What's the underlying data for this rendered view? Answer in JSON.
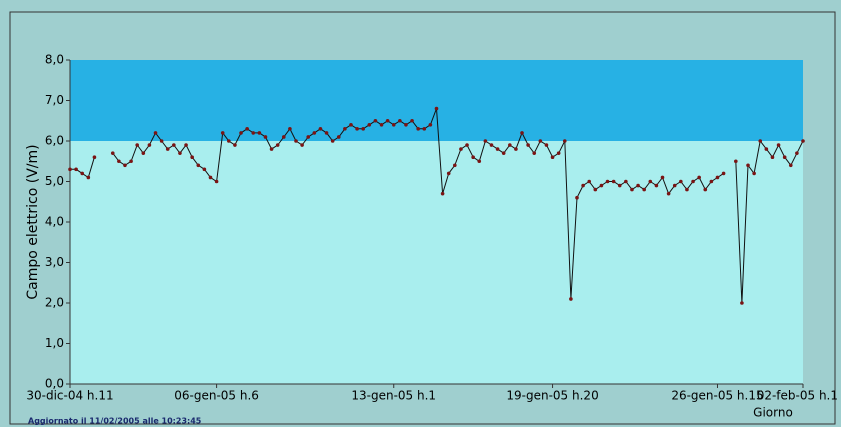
{
  "chart_data": {
    "type": "line",
    "ylabel": "Campo elettrico (V/m)",
    "xlabel": "Giorno",
    "footer": "Aggiornato il 11/02/2005 alle 10:23:45",
    "threshold": 6,
    "colors": {
      "above": "#27b1e4",
      "below": "#a9eeee",
      "line": "#111111",
      "marker": "#7a1414",
      "background": "#9fcfcf"
    },
    "xlim": [
      0,
      120
    ],
    "xticks": [
      {
        "value": 0,
        "label": "30-dic-04 h.11"
      },
      {
        "value": 24,
        "label": "06-gen-05 h.6"
      },
      {
        "value": 53,
        "label": "13-gen-05 h.1"
      },
      {
        "value": 79,
        "label": "19-gen-05 h.20"
      },
      {
        "value": 106,
        "label": "26-gen-05 h.15"
      },
      {
        "value": 120,
        "label": "02-feb-05 h.1"
      }
    ],
    "ylim": [
      0,
      8
    ],
    "yticks": [
      {
        "value": 0,
        "label": "0,0"
      },
      {
        "value": 1,
        "label": "1,0"
      },
      {
        "value": 2,
        "label": "2,0"
      },
      {
        "value": 3,
        "label": "3,0"
      },
      {
        "value": 4,
        "label": "4,0"
      },
      {
        "value": 5,
        "label": "5,0"
      },
      {
        "value": 6,
        "label": "6,0"
      },
      {
        "value": 7,
        "label": "7,0"
      },
      {
        "value": 8,
        "label": "8,0"
      }
    ],
    "values": [
      5.3,
      5.3,
      5.2,
      5.1,
      5.6,
      null,
      null,
      5.7,
      5.5,
      5.4,
      5.5,
      5.9,
      5.7,
      5.9,
      6.2,
      6.0,
      5.8,
      5.9,
      5.7,
      5.9,
      5.6,
      5.4,
      5.3,
      5.1,
      5.0,
      6.2,
      6.0,
      5.9,
      6.2,
      6.3,
      6.2,
      6.2,
      6.1,
      5.8,
      5.9,
      6.1,
      6.3,
      6.0,
      5.9,
      6.1,
      6.2,
      6.3,
      6.2,
      6.0,
      6.1,
      6.3,
      6.4,
      6.3,
      6.3,
      6.4,
      6.5,
      6.4,
      6.5,
      6.4,
      6.5,
      6.4,
      6.5,
      6.3,
      6.3,
      6.4,
      6.8,
      4.7,
      5.2,
      5.4,
      5.8,
      5.9,
      5.6,
      5.5,
      6.0,
      5.9,
      5.8,
      5.7,
      5.9,
      5.8,
      6.2,
      5.9,
      5.7,
      6.0,
      5.9,
      5.6,
      5.7,
      6.0,
      2.1,
      4.6,
      4.9,
      5.0,
      4.8,
      4.9,
      5.0,
      5.0,
      4.9,
      5.0,
      4.8,
      4.9,
      4.8,
      5.0,
      4.9,
      5.1,
      4.7,
      4.9,
      5.0,
      4.8,
      5.0,
      5.1,
      4.8,
      5.0,
      5.1,
      5.2,
      null,
      5.5,
      2.0,
      5.4,
      5.2,
      6.0,
      5.8,
      5.6,
      5.9,
      5.6,
      5.4,
      5.7,
      6.0
    ]
  }
}
